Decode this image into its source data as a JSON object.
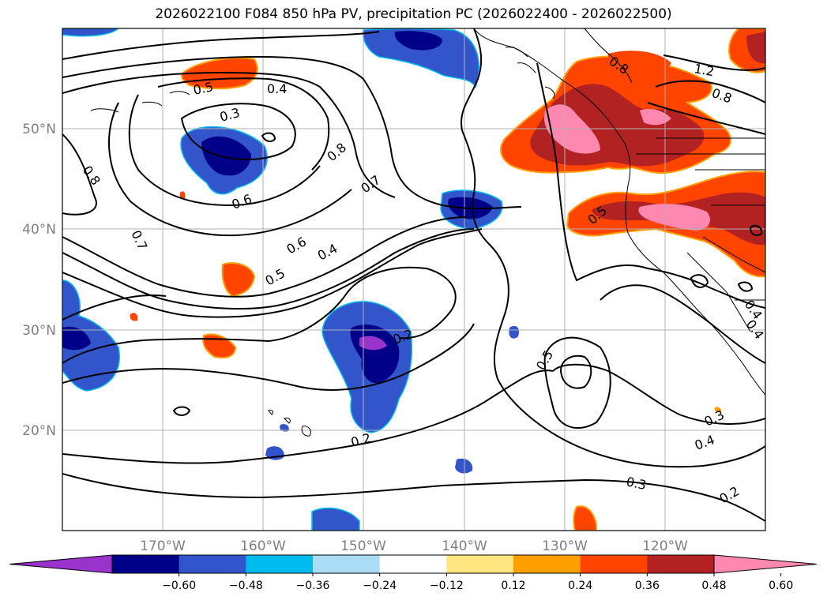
{
  "title": "2026022100 F084 850 hPa PV, precipitation PC (2026022400 - 2026022500)",
  "axes": {
    "lon_ticks": [
      "170°W",
      "160°W",
      "150°W",
      "140°W",
      "130°W",
      "120°W"
    ],
    "lat_ticks": [
      "50°N",
      "40°N",
      "30°N",
      "20°N"
    ],
    "lon_range": [
      -180,
      -110
    ],
    "lat_range": [
      10,
      60
    ],
    "grid": true
  },
  "colorbar": {
    "tick_labels": [
      "−0.60",
      "−0.48",
      "−0.36",
      "−0.24",
      "−0.12",
      "0.12",
      "0.24",
      "0.36",
      "0.48",
      "0.60"
    ],
    "colors": [
      "#9933cc",
      "#000088",
      "#3355cc",
      "#00bbee",
      "#aaddf5",
      "#ffffff",
      "#ffe680",
      "#ffa000",
      "#ff4400",
      "#b22222",
      "#ff88b0"
    ],
    "extend": "both"
  },
  "contour_labels": [
    "0.5",
    "0.4",
    "0.3",
    "0.8",
    "0.6",
    "0.7",
    "0.8",
    "0.7",
    "0.6",
    "0.5",
    "0.4",
    "0.2",
    "0.2",
    "0.5",
    "0.3",
    "0.4",
    "0.3",
    "0.2",
    "0.5",
    "1.2",
    "0.8",
    "0.4",
    "0.4",
    "0.8"
  ],
  "map_features": [
    "coastlines",
    "state-borders",
    "pv-contours",
    "precipitation-fill"
  ]
}
